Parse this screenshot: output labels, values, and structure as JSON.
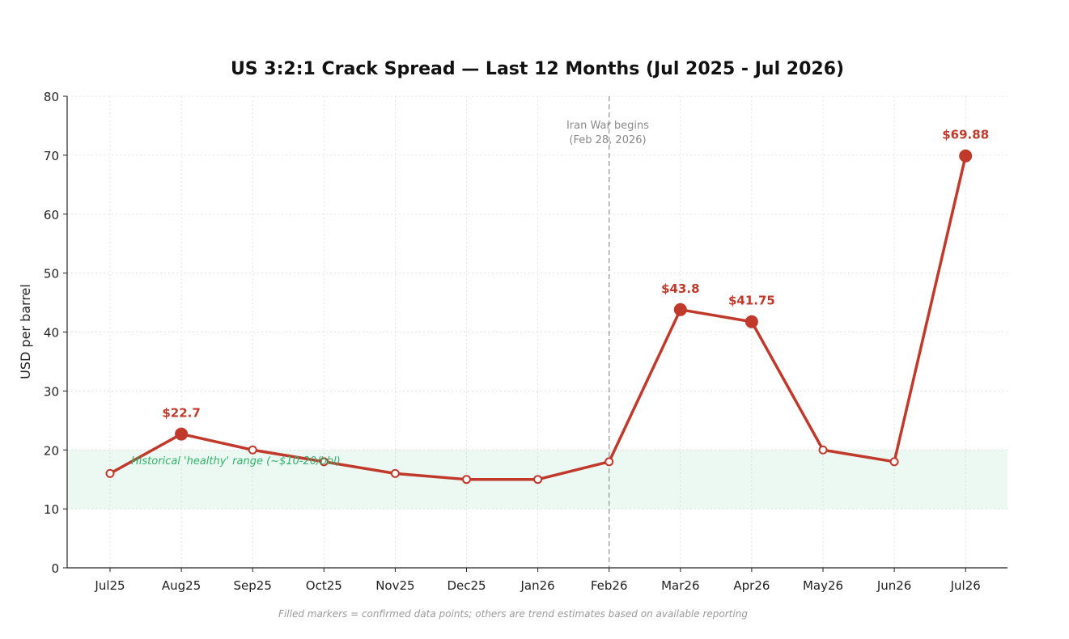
{
  "chart_data": {
    "type": "line",
    "title": "US 3:2:1 Crack Spread — Last 12 Months (Jul 2025 - Jul 2026)",
    "ylabel": "USD per barrel",
    "xlabel": "",
    "ylim": [
      0,
      80
    ],
    "yticks": [
      0,
      10,
      20,
      30,
      40,
      50,
      60,
      70,
      80
    ],
    "grid": true,
    "categories": [
      "Jul25",
      "Aug25",
      "Sep25",
      "Oct25",
      "Nov25",
      "Dec25",
      "Jan26",
      "Feb26",
      "Mar26",
      "Apr26",
      "May26",
      "Jun26",
      "Jul26"
    ],
    "series": [
      {
        "values": [
          16,
          22.7,
          20,
          18,
          16,
          15,
          15,
          18,
          43.8,
          41.75,
          20,
          18,
          69.88
        ],
        "confirmed": [
          false,
          true,
          false,
          false,
          false,
          false,
          false,
          false,
          true,
          true,
          false,
          false,
          true
        ],
        "color": "#c0392b"
      }
    ],
    "data_labels": [
      {
        "index": 1,
        "text": "$22.7"
      },
      {
        "index": 8,
        "text": "$43.8"
      },
      {
        "index": 9,
        "text": "$41.75"
      },
      {
        "index": 12,
        "text": "$69.88"
      }
    ],
    "band": {
      "y_from": 10,
      "y_to": 20,
      "label": "Historical 'healthy' range (~$10-20/bbl)",
      "color": "#2fb36a"
    },
    "event": {
      "category": "Feb26",
      "label_line1": "Iran War begins",
      "label_line2": "(Feb 28, 2026)"
    },
    "footnote": "Filled markers = confirmed data points; others are trend estimates based on available reporting"
  }
}
